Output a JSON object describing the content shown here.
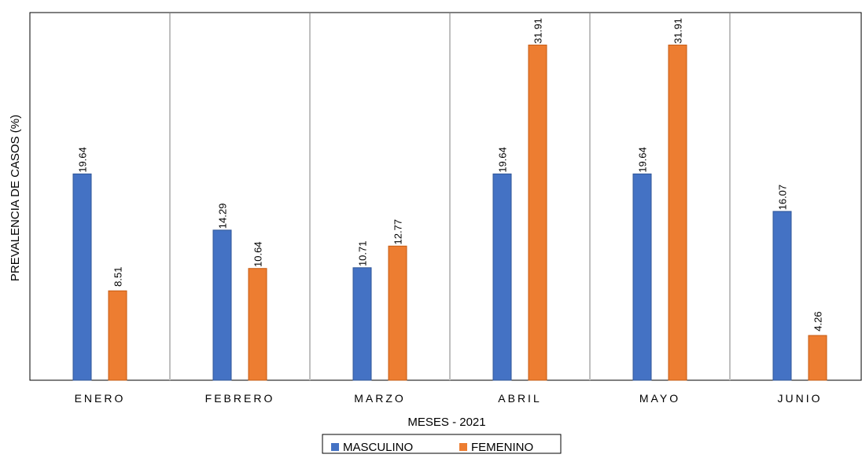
{
  "chart_data": {
    "type": "bar",
    "title": "",
    "xlabel": "MESES - 2021",
    "ylabel": "PREVALENCIA DE CASOS (%)",
    "categories": [
      "ENERO",
      "FEBRERO",
      "MARZO",
      "ABRIL",
      "MAYO",
      "JUNIO"
    ],
    "series": [
      {
        "name": "MASCULINO",
        "color": "#4472C4",
        "values": [
          19.64,
          14.29,
          10.71,
          19.64,
          19.64,
          16.07
        ],
        "labels": [
          "19.64",
          "14.29",
          "10.71",
          "19.64",
          "19.64",
          "16.07"
        ]
      },
      {
        "name": "FEMENINO",
        "color": "#ED7D31",
        "values": [
          8.51,
          10.64,
          12.77,
          31.91,
          31.91,
          4.26
        ],
        "labels": [
          "8.51",
          "10.64",
          "12.77",
          "31.91",
          "31.91",
          "4.26"
        ]
      }
    ],
    "ylim": [
      0,
      35
    ],
    "grid": false,
    "category_separators": true,
    "legend_position": "bottom-center"
  }
}
